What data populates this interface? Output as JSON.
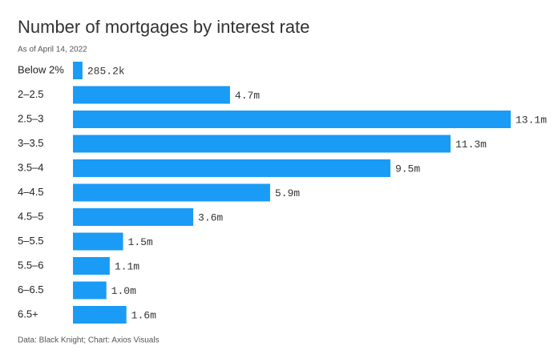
{
  "chart_data": {
    "type": "hbar",
    "title": "Number of mortgages by interest rate",
    "subtitle": "As of April 14, 2022",
    "source": "Data: Black Knight; Chart: Axios Visuals",
    "categories": [
      "Below 2%",
      "2–2.5",
      "2.5–3",
      "3–3.5",
      "3.5–4",
      "4–4.5",
      "4.5–5",
      "5–5.5",
      "5.5–6",
      "6–6.5",
      "6.5+"
    ],
    "values": [
      0.2852,
      4.7,
      13.1,
      11.3,
      9.5,
      5.9,
      3.6,
      1.5,
      1.1,
      1.0,
      1.6
    ],
    "value_labels": [
      "285.2k",
      "4.7m",
      "13.1m",
      "11.3m",
      "9.5m",
      "5.9m",
      "3.6m",
      "1.5m",
      "1.1m",
      "1.0m",
      "1.6m"
    ],
    "color": "#1a9bf5"
  }
}
